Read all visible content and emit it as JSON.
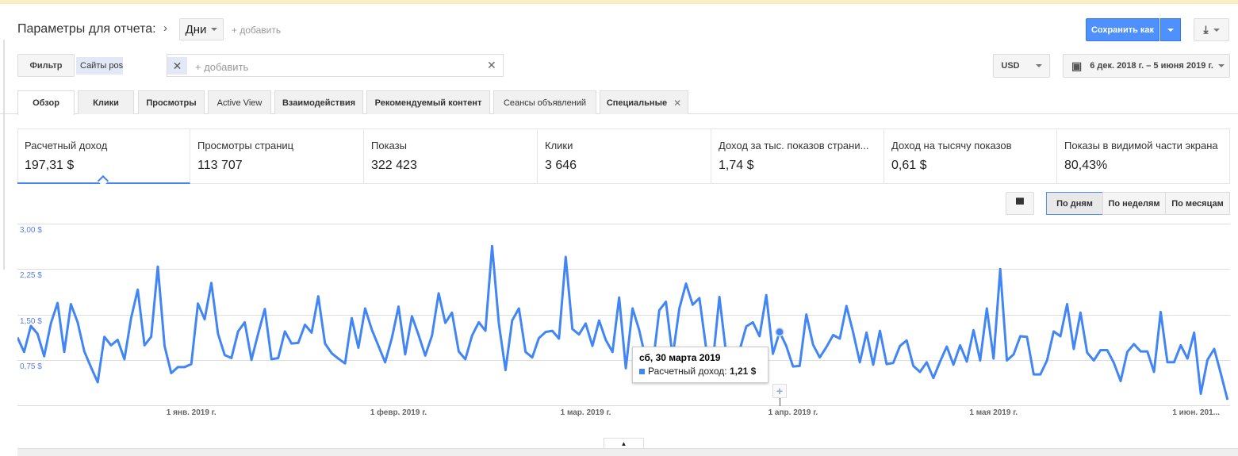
{
  "header": {
    "title": "Параметры для отчета:",
    "dimension": "Дни",
    "add_label": "+ добавить",
    "save_label": "Сохранить как"
  },
  "filter": {
    "button": "Фильтр",
    "chip": "Сайты pos",
    "add_placeholder": "+ добавить",
    "currency": "USD",
    "date_range": "6 дек. 2018 г. – 5 июня 2019 г."
  },
  "tabs": [
    {
      "label": "Обзор",
      "active": true
    },
    {
      "label": "Клики"
    },
    {
      "label": "Просмотры"
    },
    {
      "label": "Active View"
    },
    {
      "label": "Взаимодействия"
    },
    {
      "label": "Рекомендуемый контент"
    },
    {
      "label": "Сеансы объявлений"
    },
    {
      "label": "Специальные",
      "closable": true
    }
  ],
  "metrics": [
    {
      "label": "Расчетный доход",
      "value": "197,31 $",
      "active": true
    },
    {
      "label": "Просмотры страниц",
      "value": "113 707"
    },
    {
      "label": "Показы",
      "value": "322 423"
    },
    {
      "label": "Клики",
      "value": "3 646"
    },
    {
      "label": "Доход за тыс. показов страни...",
      "value": "1,74 $"
    },
    {
      "label": "Доход на тысячу показов",
      "value": "0,61 $"
    },
    {
      "label": "Показы в видимой части экрана",
      "value": "80,43%"
    }
  ],
  "granularity": {
    "options": [
      "По дням",
      "По неделям",
      "По месяцам"
    ],
    "selected": "По дням"
  },
  "tooltip": {
    "date": "сб, 30 марта 2019",
    "series": "Расчетный доход:",
    "value": "1,21 $"
  },
  "colors": {
    "accent": "#4285f4",
    "save_button": "#4d90fe",
    "line": "#4285f4"
  },
  "chart_data": {
    "type": "line",
    "ylim": [
      0,
      3
    ],
    "yticks": [
      "3,00 $",
      "2,25 $",
      "1,50 $",
      "0,75 $"
    ],
    "ytick_values": [
      3,
      2.25,
      1.5,
      0.75
    ],
    "xticks": [
      {
        "date": "2019-01-01",
        "label": "1 янв. 2019 г."
      },
      {
        "date": "2019-02-01",
        "label": "1 февр. 2019 г."
      },
      {
        "date": "2019-03-01",
        "label": "1 мар. 2019 г."
      },
      {
        "date": "2019-04-01",
        "label": "1 апр. 2019 г."
      },
      {
        "date": "2019-05-01",
        "label": "1 мая 2019 г."
      },
      {
        "date": "2019-06-01",
        "label": "1 июн. 201..."
      }
    ],
    "grid": true,
    "x_start": "2018-12-06",
    "x_end": "2019-06-05",
    "series": [
      {
        "name": "Расчетный доход",
        "values": [
          1.12,
          0.88,
          1.31,
          1.18,
          0.81,
          1.35,
          1.69,
          0.88,
          1.67,
          1.37,
          0.89,
          0.63,
          0.38,
          1.13,
          0.99,
          1.08,
          0.76,
          1.44,
          1.91,
          0.99,
          1.13,
          2.29,
          0.98,
          0.53,
          0.63,
          0.63,
          0.68,
          1.68,
          1.42,
          2.02,
          1.18,
          0.83,
          0.78,
          1.22,
          1.37,
          0.75,
          1.18,
          1.59,
          0.76,
          0.78,
          1.22,
          1.02,
          1.03,
          1.33,
          1.2,
          1.8,
          1.02,
          0.86,
          0.77,
          0.69,
          1.44,
          0.95,
          1.6,
          1.25,
          0.98,
          0.71,
          1.11,
          1.63,
          0.84,
          1.47,
          1.16,
          0.82,
          1.15,
          1.85,
          1.36,
          1.53,
          0.89,
          0.76,
          1.15,
          1.37,
          1.23,
          2.63,
          1.35,
          0.58,
          1.4,
          1.6,
          0.88,
          0.79,
          1.11,
          1.21,
          1.23,
          1.1,
          2.45,
          1.26,
          1.17,
          1.35,
          0.98,
          1.4,
          1.08,
          0.88,
          1.78,
          0.61,
          1.6,
          1.24,
          0.75,
          0.65,
          1.57,
          1.71,
          0.8,
          1.6,
          2.01,
          1.66,
          1.77,
          0.95,
          0.7,
          1.79,
          0.85,
          0.6,
          0.9,
          1.3,
          1.37,
          1.14,
          1.82,
          0.85,
          1.21,
          0.98,
          0.64,
          0.65,
          1.5,
          1.0,
          0.79,
          0.96,
          1.16,
          1.1,
          1.64,
          1.2,
          0.71,
          1.2,
          0.67,
          1.23,
          0.68,
          0.7,
          0.98,
          1.07,
          0.65,
          0.55,
          0.71,
          0.45,
          0.72,
          0.97,
          0.67,
          0.99,
          0.72,
          1.24,
          0.74,
          1.6,
          0.77,
          2.25,
          0.74,
          0.84,
          1.14,
          1.13,
          0.51,
          0.51,
          0.74,
          1.22,
          1.14,
          1.67,
          0.93,
          1.53,
          0.87,
          0.74,
          0.91,
          0.91,
          0.7,
          0.4,
          0.88,
          1.01,
          0.89,
          0.89,
          0.55,
          1.54,
          0.71,
          0.71,
          0.99,
          0.77,
          1.2,
          0.19,
          0.75,
          0.93,
          0.52,
          0.09
        ]
      }
    ],
    "highlight": {
      "date": "2019-03-30",
      "value": 1.21
    }
  }
}
